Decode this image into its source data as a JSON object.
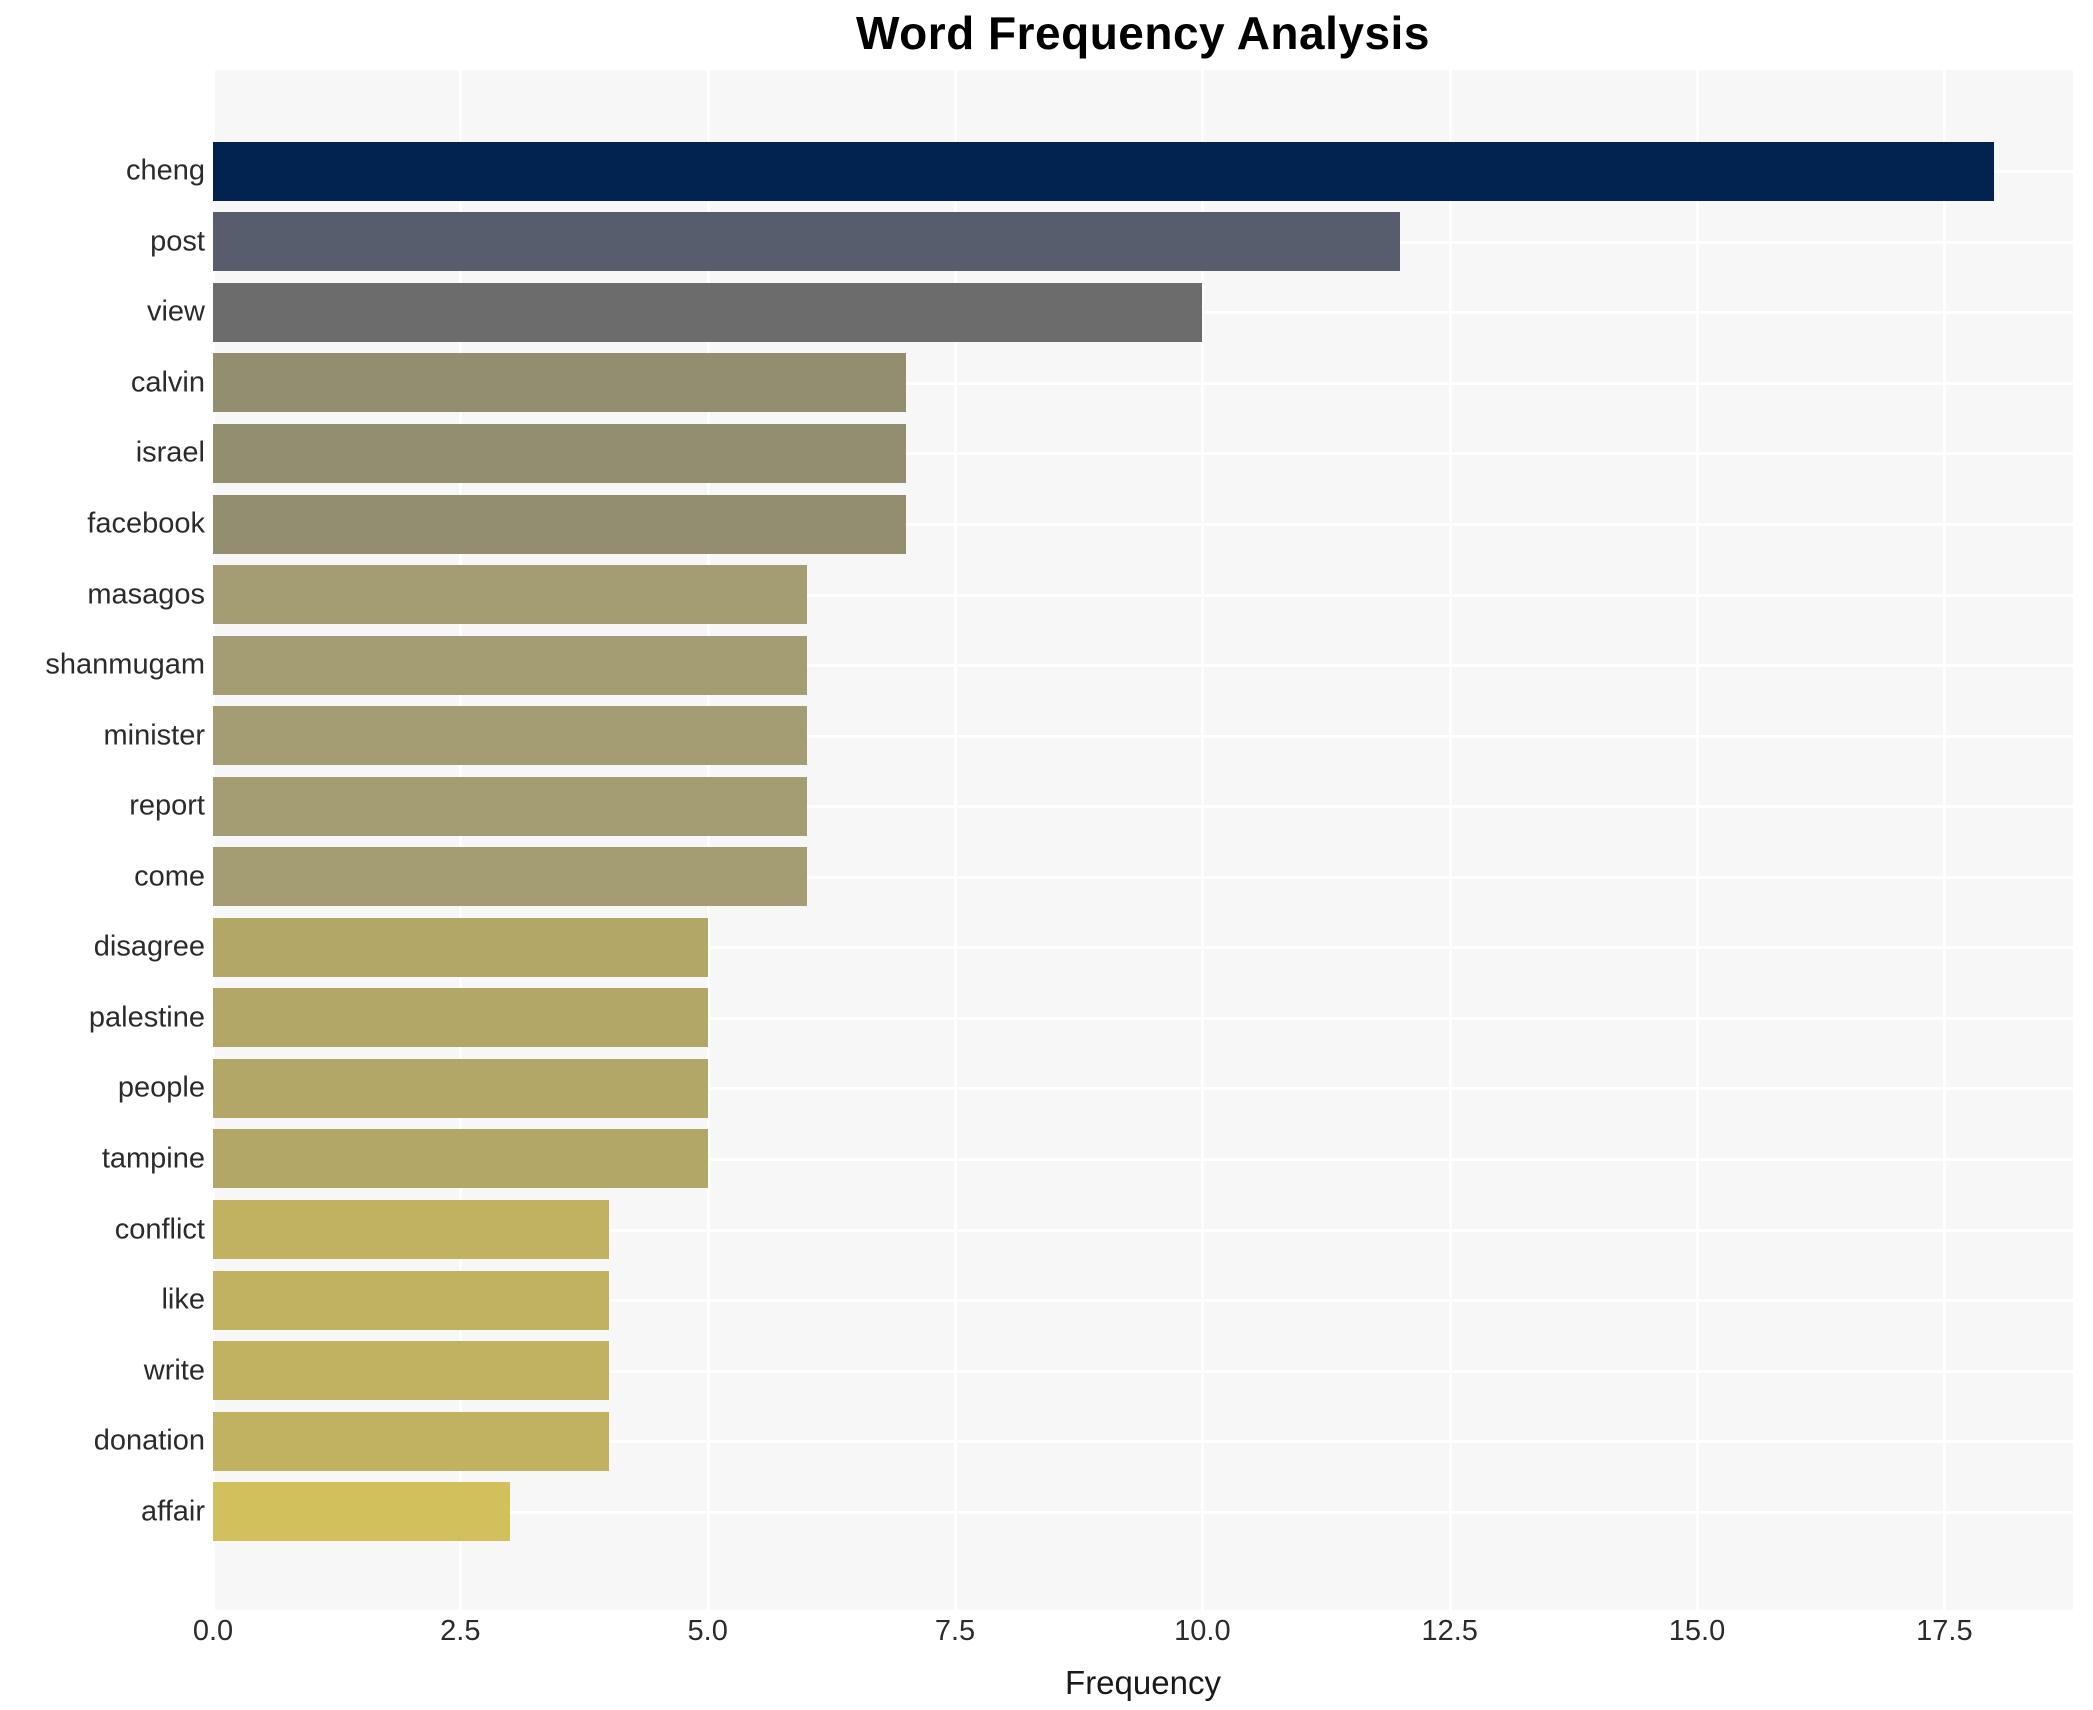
{
  "title": "Word Frequency Analysis",
  "chart_data": {
    "type": "bar",
    "orientation": "horizontal",
    "title": "Word Frequency Analysis",
    "xlabel": "Frequency",
    "ylabel": "",
    "xlim": [
      0,
      18.8
    ],
    "grid": true,
    "legend": "none",
    "x_ticks": [
      "0.0",
      "2.5",
      "5.0",
      "7.5",
      "10.0",
      "12.5",
      "15.0",
      "17.5"
    ],
    "categories": [
      "cheng",
      "post",
      "view",
      "calvin",
      "israel",
      "facebook",
      "masagos",
      "shanmugam",
      "minister",
      "report",
      "come",
      "disagree",
      "palestine",
      "people",
      "tampine",
      "conflict",
      "like",
      "write",
      "donation",
      "affair"
    ],
    "values": [
      18,
      12,
      10,
      7,
      7,
      7,
      6,
      6,
      6,
      6,
      6,
      5,
      5,
      5,
      5,
      4,
      4,
      4,
      4,
      3
    ],
    "bar_colors": [
      "#022250",
      "#575D6D",
      "#6C6C6C",
      "#948E71",
      "#948E71",
      "#948E71",
      "#A49C72",
      "#A49C72",
      "#A49C72",
      "#A49C72",
      "#A49C72",
      "#B3A768",
      "#B3A768",
      "#B3A768",
      "#B3A768",
      "#C1B261",
      "#C1B261",
      "#C1B261",
      "#C1B261",
      "#D2C05C"
    ]
  },
  "colors": {
    "plot_background": "#f7f7f7",
    "grid_line": "#ffffff",
    "title_text": "#000000",
    "tick_text": "#2b2b2b"
  }
}
